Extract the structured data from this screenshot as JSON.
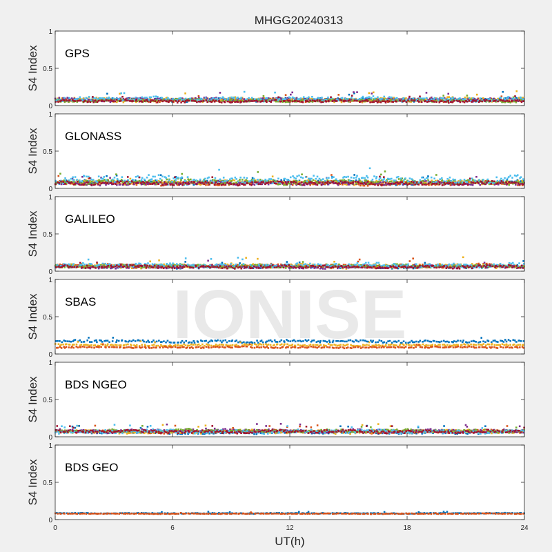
{
  "chart_data": {
    "type": "scatter",
    "title": "MHGG20240313",
    "xlabel": "UT(h)",
    "ylabel": "S4 Index",
    "xlim": [
      0,
      24
    ],
    "xticks": [
      "0",
      "6",
      "12",
      "18",
      "24"
    ],
    "ylim": [
      0,
      1
    ],
    "yticks": [
      "0",
      "0.5",
      "1"
    ],
    "grid": false,
    "watermark": "IONISE",
    "palette": [
      "#0072bd",
      "#d95319",
      "#edb120",
      "#7e2f8e",
      "#77ac30",
      "#4dbeee",
      "#a2142f"
    ],
    "panels": [
      {
        "label": "GPS",
        "series": [
          {
            "color": "#0072bd",
            "base": 0.08,
            "amp": 0.035
          },
          {
            "color": "#d95319",
            "base": 0.07,
            "amp": 0.03
          },
          {
            "color": "#edb120",
            "base": 0.08,
            "amp": 0.04
          },
          {
            "color": "#7e2f8e",
            "base": 0.08,
            "amp": 0.035
          },
          {
            "color": "#77ac30",
            "base": 0.07,
            "amp": 0.03
          },
          {
            "color": "#4dbeee",
            "base": 0.09,
            "amp": 0.04
          },
          {
            "color": "#a2142f",
            "base": 0.06,
            "amp": 0.025
          }
        ]
      },
      {
        "label": "GLONASS",
        "series": [
          {
            "color": "#0072bd",
            "base": 0.08,
            "amp": 0.04
          },
          {
            "color": "#d95319",
            "base": 0.07,
            "amp": 0.04
          },
          {
            "color": "#edb120",
            "base": 0.08,
            "amp": 0.04
          },
          {
            "color": "#7e2f8e",
            "base": 0.07,
            "amp": 0.035
          },
          {
            "color": "#77ac30",
            "base": 0.09,
            "amp": 0.05
          },
          {
            "color": "#4dbeee",
            "base": 0.12,
            "amp": 0.07
          },
          {
            "color": "#a2142f",
            "base": 0.07,
            "amp": 0.035
          }
        ]
      },
      {
        "label": "GALILEO",
        "series": [
          {
            "color": "#0072bd",
            "base": 0.06,
            "amp": 0.03
          },
          {
            "color": "#d95319",
            "base": 0.07,
            "amp": 0.035
          },
          {
            "color": "#edb120",
            "base": 0.07,
            "amp": 0.04
          },
          {
            "color": "#7e2f8e",
            "base": 0.06,
            "amp": 0.03
          },
          {
            "color": "#77ac30",
            "base": 0.07,
            "amp": 0.03
          },
          {
            "color": "#4dbeee",
            "base": 0.08,
            "amp": 0.04
          },
          {
            "color": "#a2142f",
            "base": 0.06,
            "amp": 0.03
          }
        ]
      },
      {
        "label": "SBAS",
        "series": [
          {
            "color": "#0072bd",
            "base": 0.17,
            "amp": 0.025
          },
          {
            "color": "#edb120",
            "base": 0.12,
            "amp": 0.02
          },
          {
            "color": "#d95319",
            "base": 0.09,
            "amp": 0.015
          }
        ]
      },
      {
        "label": "BDS NGEO",
        "series": [
          {
            "color": "#0072bd",
            "base": 0.06,
            "amp": 0.03
          },
          {
            "color": "#d95319",
            "base": 0.07,
            "amp": 0.03
          },
          {
            "color": "#edb120",
            "base": 0.07,
            "amp": 0.035
          },
          {
            "color": "#7e2f8e",
            "base": 0.08,
            "amp": 0.035
          },
          {
            "color": "#77ac30",
            "base": 0.08,
            "amp": 0.03
          },
          {
            "color": "#4dbeee",
            "base": 0.07,
            "amp": 0.035
          },
          {
            "color": "#a2142f",
            "base": 0.07,
            "amp": 0.03
          }
        ]
      },
      {
        "label": "BDS GEO",
        "series": [
          {
            "color": "#0072bd",
            "base": 0.085,
            "amp": 0.008
          },
          {
            "color": "#d95319",
            "base": 0.08,
            "amp": 0.006
          }
        ]
      }
    ]
  }
}
